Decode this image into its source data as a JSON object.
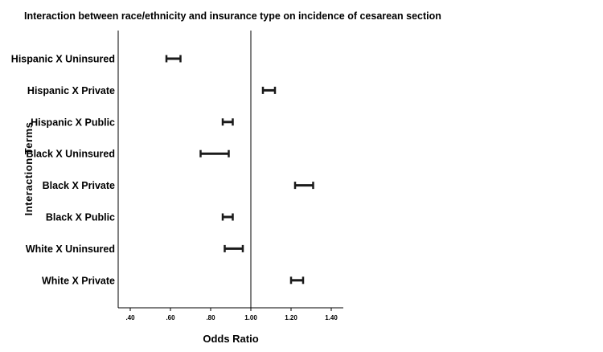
{
  "chart_data": {
    "type": "forest",
    "title": "Interaction between race/ethnicity and insurance type on incidence of cesarean section",
    "xlabel": "Odds Ratio",
    "ylabel": "Interaction Terms",
    "xlim": [
      0.34,
      1.46
    ],
    "xticks": [
      0.4,
      0.6,
      0.8,
      1.0,
      1.2,
      1.4
    ],
    "xtick_labels": [
      ".40",
      ".60",
      ".80",
      "1.00",
      "1.20",
      "1.40"
    ],
    "reference_line": 1.0,
    "grid": false,
    "categories": [
      "Hispanic X Uninsured",
      "Hispanic X Private",
      "Hispanic X Public",
      "Black X Uninsured",
      "Black X Private",
      "Black X Public",
      "White X Uninsured",
      "White X Private"
    ],
    "intervals": [
      {
        "lower": 0.58,
        "upper": 0.65
      },
      {
        "lower": 1.06,
        "upper": 1.12
      },
      {
        "lower": 0.86,
        "upper": 0.91
      },
      {
        "lower": 0.75,
        "upper": 0.89
      },
      {
        "lower": 1.22,
        "upper": 1.31
      },
      {
        "lower": 0.86,
        "upper": 0.91
      },
      {
        "lower": 0.87,
        "upper": 0.96
      },
      {
        "lower": 1.2,
        "upper": 1.26
      }
    ]
  }
}
